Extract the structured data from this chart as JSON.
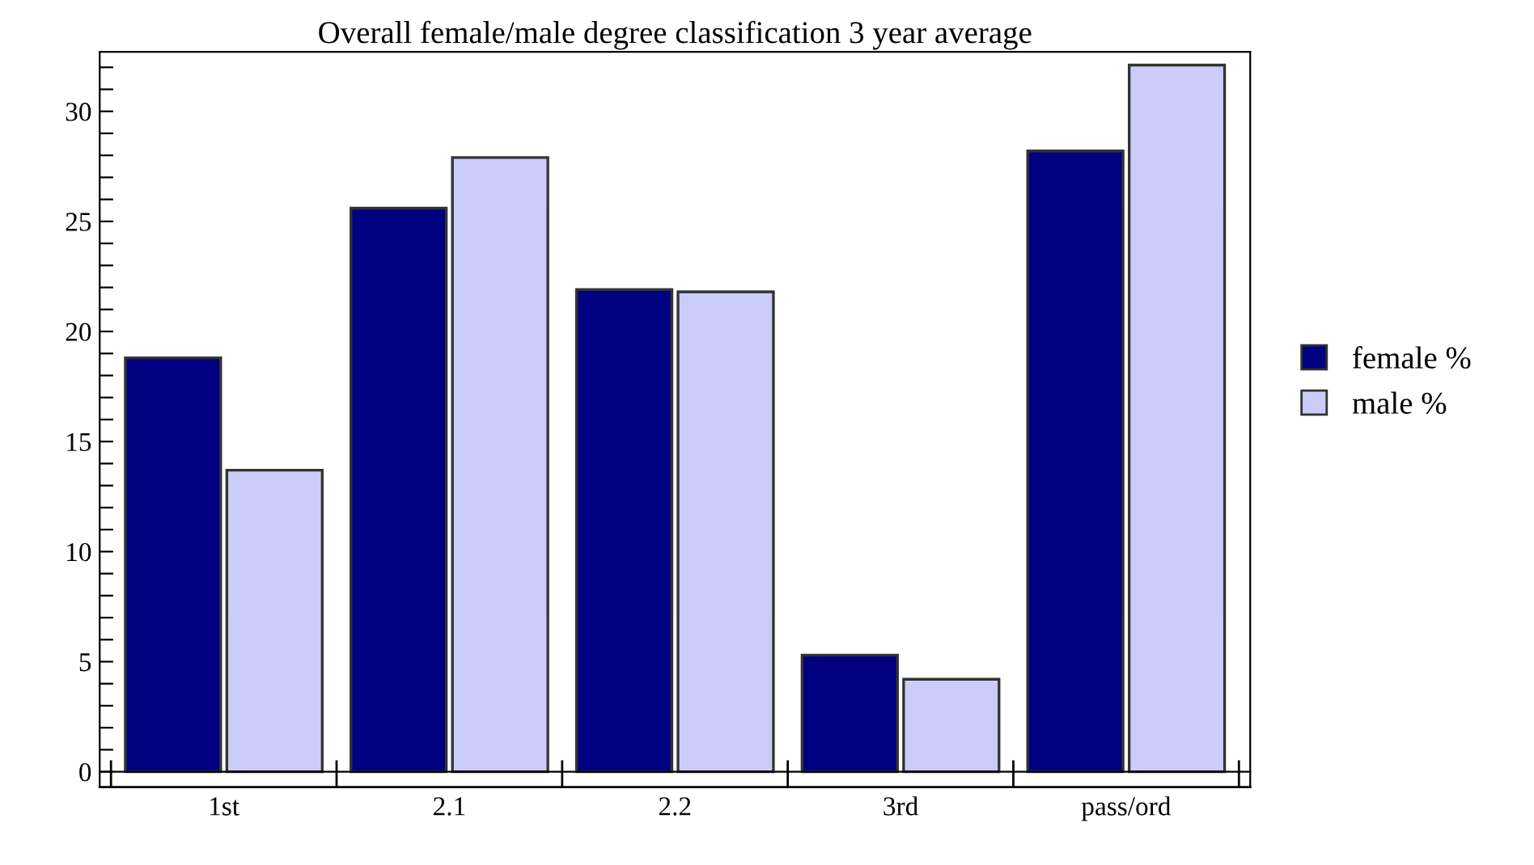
{
  "chart_data": {
    "type": "bar",
    "title": "Overall female/male degree classification 3 year average",
    "categories": [
      "1st",
      "2.1",
      "2.2",
      "3rd",
      "pass/ord"
    ],
    "series": [
      {
        "name": "female %",
        "color": "#000080",
        "values": [
          18.8,
          25.6,
          21.9,
          5.3,
          28.2
        ]
      },
      {
        "name": "male %",
        "color": "#ccccf8",
        "values": [
          13.7,
          27.9,
          21.8,
          4.2,
          32.1
        ]
      }
    ],
    "ylim": [
      -0.7,
      32.7
    ],
    "yticks": [
      0,
      {
        "value": 1,
        "label": null
      },
      {
        "value": 2,
        "label": null
      },
      {
        "value": 3,
        "label": null
      },
      {
        "value": 4,
        "label": null
      },
      5,
      {
        "value": 6,
        "label": null
      },
      {
        "value": 7,
        "label": null
      },
      {
        "value": 8,
        "label": null
      },
      {
        "value": 9,
        "label": null
      },
      10,
      {
        "value": 11,
        "label": null
      },
      {
        "value": 12,
        "label": null
      },
      {
        "value": 13,
        "label": null
      },
      {
        "value": 14,
        "label": null
      },
      15,
      {
        "value": 16,
        "label": null
      },
      {
        "value": 17,
        "label": null
      },
      {
        "value": 18,
        "label": null
      },
      {
        "value": 19,
        "label": null
      },
      20,
      {
        "value": 21,
        "label": null
      },
      {
        "value": 22,
        "label": null
      },
      {
        "value": 23,
        "label": null
      },
      {
        "value": 24,
        "label": null
      },
      25,
      {
        "value": 26,
        "label": null
      },
      {
        "value": 27,
        "label": null
      },
      {
        "value": 28,
        "label": null
      },
      {
        "value": 29,
        "label": null
      },
      30,
      {
        "value": 31,
        "label": null
      },
      {
        "value": 32,
        "label": null
      }
    ],
    "legend": "right"
  }
}
